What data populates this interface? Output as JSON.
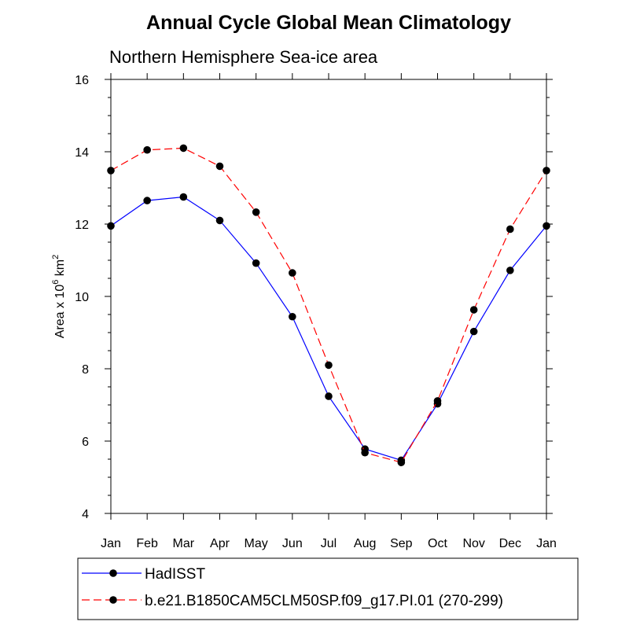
{
  "chart_data": {
    "type": "line",
    "title": "Annual Cycle Global Mean Climatology",
    "subtitle": "Northern Hemisphere Sea-ice area",
    "ylabel": {
      "prefix": "Area x 10",
      "exp1": "6",
      "mid": " km",
      "exp2": "2"
    },
    "xlabel": "",
    "ylim": [
      4,
      16
    ],
    "yticks": [
      "4",
      "6",
      "8",
      "10",
      "12",
      "14",
      "16"
    ],
    "categories": [
      "Jan",
      "Feb",
      "Mar",
      "Apr",
      "May",
      "Jun",
      "Jul",
      "Aug",
      "Sep",
      "Oct",
      "Nov",
      "Dec",
      "Jan"
    ],
    "series": [
      {
        "name": "HadISST",
        "color": "#0000ff",
        "dash": "solid",
        "values": [
          11.95,
          12.65,
          12.75,
          12.1,
          10.92,
          9.44,
          7.24,
          5.78,
          5.47,
          7.03,
          9.03,
          10.72,
          11.95
        ]
      },
      {
        "name": "b.e21.B1850CAM5CLM50SP.f09_g17.PI.01 (270-299)",
        "color": "#ff0000",
        "dash": "dashed",
        "values": [
          13.48,
          14.05,
          14.1,
          13.6,
          12.33,
          10.65,
          8.1,
          5.68,
          5.41,
          7.11,
          9.63,
          11.86,
          13.48
        ]
      }
    ],
    "marker_color": "#000000",
    "legend_position": "bottom"
  }
}
